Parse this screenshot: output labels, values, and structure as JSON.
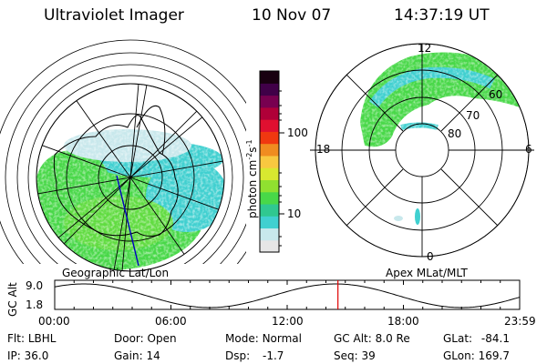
{
  "header": {
    "instrument": "Ultraviolet Imager",
    "date": "10 Nov 07",
    "time": "14:37:19 UT"
  },
  "left_panel": {
    "label": "Geographic Lat/Lon"
  },
  "right_panel": {
    "label": "Apex MLat/MLT",
    "mlt_labels": [
      "12",
      "18",
      "6",
      "0"
    ],
    "mlat_labels": [
      "60",
      "70",
      "80"
    ]
  },
  "colorbar": {
    "unit_label": "photon cm",
    "unit_exp1": "-2",
    "unit_mid": "s",
    "unit_exp2": "-1",
    "ticks": [
      "100",
      "10"
    ],
    "scale": "log",
    "colors": [
      "#e6e6e6",
      "#c8e8ec",
      "#40d0d0",
      "#30c890",
      "#48d848",
      "#90e030",
      "#d8e830",
      "#f8c840",
      "#f08c20",
      "#f03810",
      "#e01030",
      "#b00038",
      "#780050",
      "#400048",
      "#180010"
    ]
  },
  "alt_plot": {
    "ylabel": "GC Alt",
    "y_ticks": [
      "9.0",
      "1.8"
    ],
    "x_ticks": [
      "00:00",
      "06:00",
      "12:00",
      "18:00",
      "23:59"
    ],
    "marker_hour": 14.62
  },
  "info": {
    "filter_label": "Flt:",
    "filter_value": "LBHL",
    "ip_label": "IP:",
    "ip_value": "36.0",
    "door_label": "Door:",
    "door_value": "Open",
    "gain_label": "Gain:",
    "gain_value": "14",
    "mode_label": "Mode:",
    "mode_value": "Normal",
    "dsp_label": "Dsp:",
    "dsp_value": "-1.7",
    "gcalt_label": "GC Alt:",
    "gcalt_value": "8.0 Re",
    "seq_label": "Seq:",
    "seq_value": "39",
    "glat_label": "GLat:",
    "glat_value": "-84.1",
    "glon_label": "GLon:",
    "glon_value": "169.7"
  },
  "colors": {
    "aurora_green": "#48d848",
    "aurora_cyan": "#40d0d0",
    "aurora_light": "#c8e8ec",
    "marker": "#e00000",
    "track": "#0000c0"
  }
}
